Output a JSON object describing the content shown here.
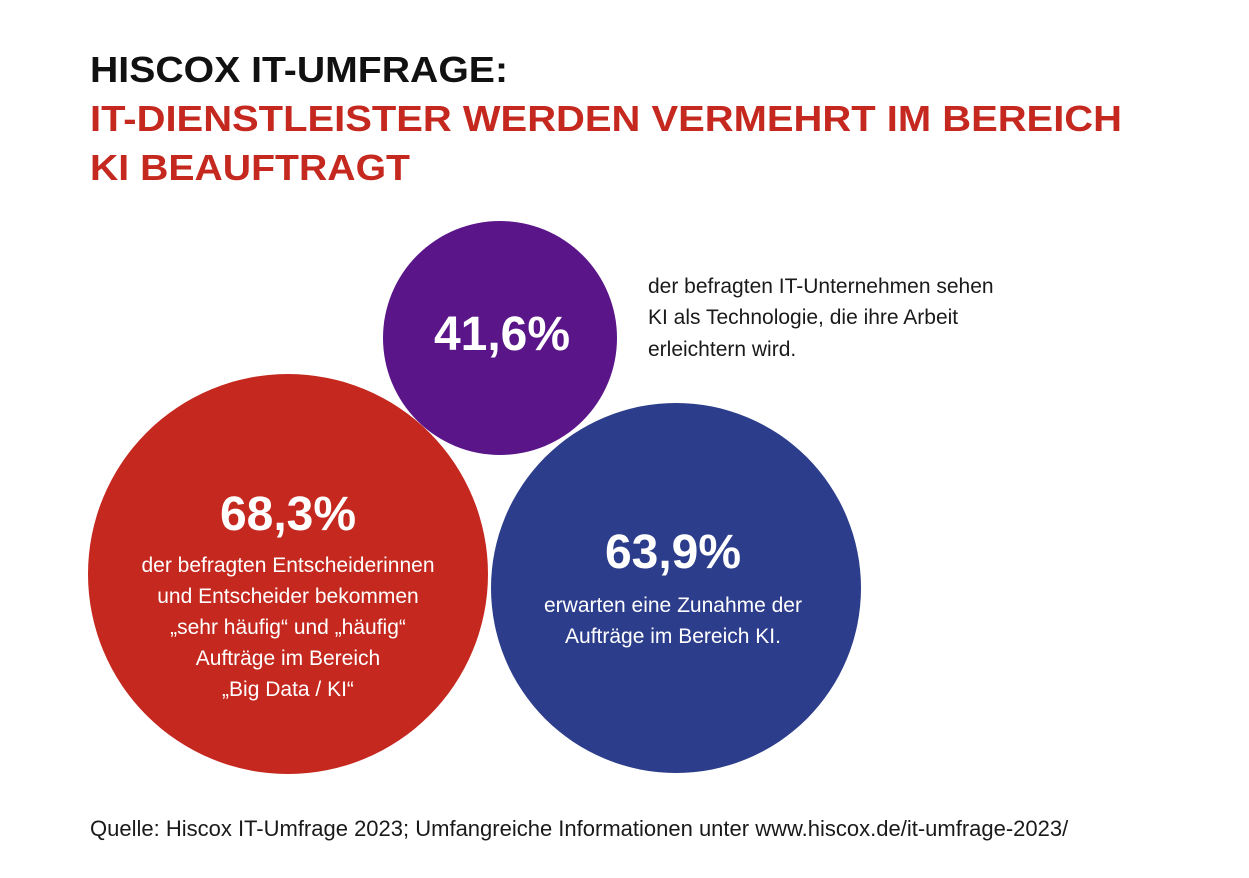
{
  "header": {
    "title": "HISCOX IT-UMFRAGE:",
    "subtitle": [
      "IT-DIENSTLEISTER WERDEN VERMEHRT IM BEREICH",
      "KI BEAUFTRAGT"
    ]
  },
  "stats": [
    {
      "value": "41,6%",
      "text": [
        "der befragten IT-Unternehmen sehen",
        "KI als Technologie, die ihre Arbeit",
        "erleichtern wird."
      ]
    },
    {
      "value": "68,3%",
      "text": [
        "der befragten Entscheiderinnen",
        "und Entscheider bekommen",
        "„sehr häufig“ und „häufig“",
        "Aufträge im Bereich",
        "„Big Data / KI“"
      ]
    },
    {
      "value": "63,9%",
      "text": [
        "erwarten eine Zunahme der",
        "Aufträge im Bereich KI."
      ]
    }
  ],
  "source": "Quelle: Hiscox IT-Umfrage 2023; Umfangreiche Informationen unter www.hiscox.de/it-umfrage-2023/"
}
